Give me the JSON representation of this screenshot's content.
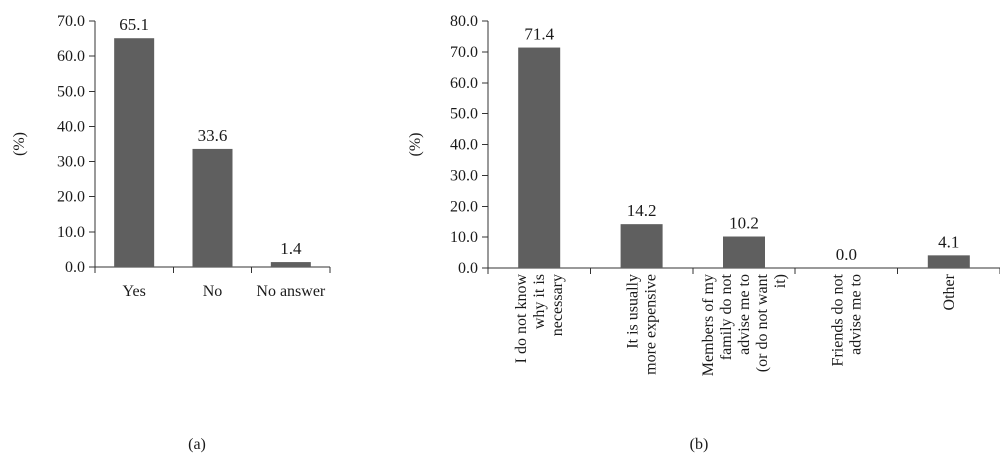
{
  "colors": {
    "bar": "#5f5f5f",
    "axis": "#333333"
  },
  "chart_data": [
    {
      "type": "bar",
      "panel": "(a)",
      "ylabel": "(%)",
      "ylim": [
        0,
        70
      ],
      "yticks": [
        "0.0",
        "10.0",
        "20.0",
        "30.0",
        "40.0",
        "50.0",
        "60.0",
        "70.0"
      ],
      "categories": [
        [
          "Yes"
        ],
        [
          "No"
        ],
        [
          "No answer"
        ]
      ],
      "values": [
        65.1,
        33.6,
        1.4
      ],
      "value_labels": [
        "65.1",
        "33.6",
        "1.4"
      ]
    },
    {
      "type": "bar",
      "panel": "(b)",
      "ylabel": "(%)",
      "ylim": [
        0,
        80
      ],
      "yticks": [
        "0.0",
        "10.0",
        "20.0",
        "30.0",
        "40.0",
        "50.0",
        "60.0",
        "70.0",
        "80.0"
      ],
      "categories": [
        [
          "I do not know",
          "why it is",
          "necessary"
        ],
        [
          "It is usually",
          "more expensive"
        ],
        [
          "Members of my",
          "family do not",
          "advise me to",
          "(or do not want",
          "it)"
        ],
        [
          "Friends do not",
          "advise me to"
        ],
        [
          "Other"
        ]
      ],
      "values": [
        71.4,
        14.2,
        10.2,
        0.0,
        4.1
      ],
      "value_labels": [
        "71.4",
        "14.2",
        "10.2",
        "0.0",
        "4.1"
      ]
    }
  ]
}
